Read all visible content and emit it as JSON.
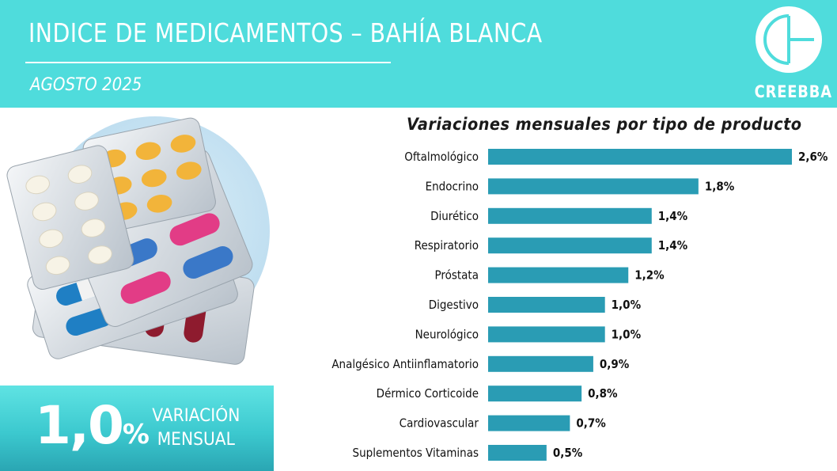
{
  "header": {
    "title": "INDICE DE MEDICAMENTOS – BAHÍA BLANCA",
    "subtitle": "AGOSTO 2025",
    "logo_text": "CREEBBA"
  },
  "kpi": {
    "value": "1,0",
    "unit": "%",
    "label_line1": "VARIACIÓN",
    "label_line2": "MENSUAL"
  },
  "colors": {
    "header_bg": "#4fdcdc",
    "bar": "#2a9cb4"
  },
  "chart_data": {
    "type": "bar",
    "orientation": "horizontal",
    "title": "Variaciones mensuales por tipo de producto",
    "categories": [
      "Oftalmológico",
      "Endocrino",
      "Diurético",
      "Respiratorio",
      "Próstata",
      "Digestivo",
      "Neurológico",
      "Analgésico Antiinflamatorio",
      "Dérmico Corticoide",
      "Cardiovascular",
      "Suplementos Vitaminas"
    ],
    "values": [
      2.6,
      1.8,
      1.4,
      1.4,
      1.2,
      1.0,
      1.0,
      0.9,
      0.8,
      0.7,
      0.5
    ],
    "value_labels": [
      "2,6%",
      "1,8%",
      "1,4%",
      "1,4%",
      "1,2%",
      "1,0%",
      "1,0%",
      "0,9%",
      "0,8%",
      "0,7%",
      "0,5%"
    ],
    "xlim": [
      0,
      2.6
    ],
    "grid": false,
    "legend": "none"
  }
}
